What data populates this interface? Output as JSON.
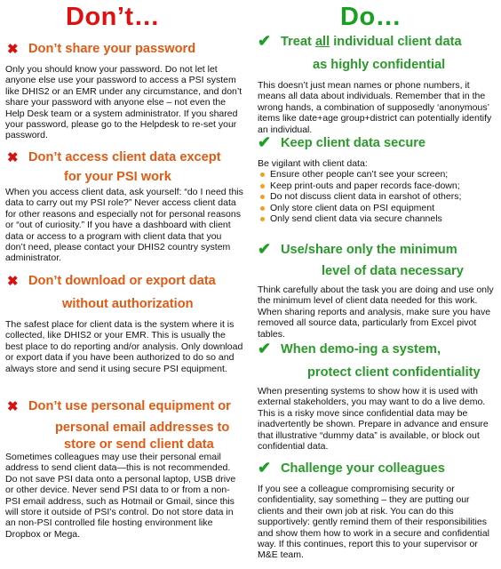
{
  "dont": {
    "title": "Don’t…",
    "sections": [
      {
        "heading_l1": "Don’t share your password",
        "heading_l2": "",
        "body": "Only you should know your password. Do not let let anyone else use your password to access a PSI system like DHIS2 or an EMR under any circumstance, and don’t share your password with anyone else – not even the Help Desk team or a system administrator. If you shared your password, please go to the Helpdesk to re-set your password."
      },
      {
        "heading_l1": "Don’t access client data except",
        "heading_l2": "for your PSI work",
        "body": "When you access client data, ask yourself: “do I need this data to carry out my PSI role?”  Never access client data for other reasons and especially not for personal reasons or “out of curiosity.” If you have a dashboard with client data or access to a program with client data that you don’t need, please contact your DHIS2 country system administrator."
      },
      {
        "heading_l1": "Don’t download or export data",
        "heading_l2": "without authorization",
        "body": "The safest place for client data is the system where it is collected, like DHIS2 or your EMR. This is usually the best place to do reporting and/or analysis.  Only download or export data if you have been authorized to do so and always store and send it using secure PSI equipment."
      },
      {
        "heading_l1": "Don’t use personal equipment or",
        "heading_l2": "personal email addresses to",
        "heading_l3": "store or send client data",
        "body": "Sometimes colleagues may use their personal email address to send client data—this is not recommended. Do not save PSI data onto a personal laptop, USB drive or other device.  Never send PSI data to or from a non-PSI email address, such as Hotmail or Gmail, since this will store it outside of PSI’s control. Do not store data in an non-PSI controlled file hosting environment like Dropbox or Mega."
      }
    ]
  },
  "do": {
    "title": "Do…",
    "sections": [
      {
        "heading_pre": "Treat ",
        "heading_u": "all",
        "heading_post": " individual client data",
        "heading_l2": "as highly confidential",
        "body": "This doesn’t just mean names or phone numbers, it means all data about individuals.  Remember that in the wrong hands, a combination of supposedly ‘anonymous’ items like date+age group+district can potentially identify an individual."
      },
      {
        "heading_l1": "Keep client data secure",
        "body": "Be vigilant with client data:",
        "bullets": [
          "Ensure other people can’t see your screen;",
          "Keep print-outs and paper records face-down;",
          "Do not discuss client data in earshot of others;",
          "Only store client data on PSI equipment",
          "Only send client data via secure channels"
        ]
      },
      {
        "heading_l1": "Use/share only the minimum",
        "heading_l2": "level of data necessary",
        "body": "Think carefully about the task you are doing and use only the minimum level of client data needed for this work.  When sharing reports and analysis, make sure you have removed all source data, particularly from Excel pivot tables."
      },
      {
        "heading_l1": "When demo-ing a system,",
        "heading_l2": "protect client confidentiality",
        "body": "When presenting systems to show how it is used with external stakeholders, you may want to do a live demo. This is a risky move since confidential data may be inadvertently be shown. Prepare in advance and ensure that illustrative “dummy data” is available, or block out confidential data."
      },
      {
        "heading_l1": "Challenge your colleagues",
        "body": "If you see a colleague compromising security or confidentiality, say something – they are putting our clients and their own job at risk. You can do this supportively: gently remind them of their responsibilities and show them how to work in a secure and confidential way. If this continues, report this to your supervisor or M&E team."
      }
    ]
  },
  "icons": {
    "dont_mark": "cross-mark-icon",
    "do_mark": "check-mark-icon",
    "cross_color": "#d81010",
    "check_color": "#1ca024"
  }
}
